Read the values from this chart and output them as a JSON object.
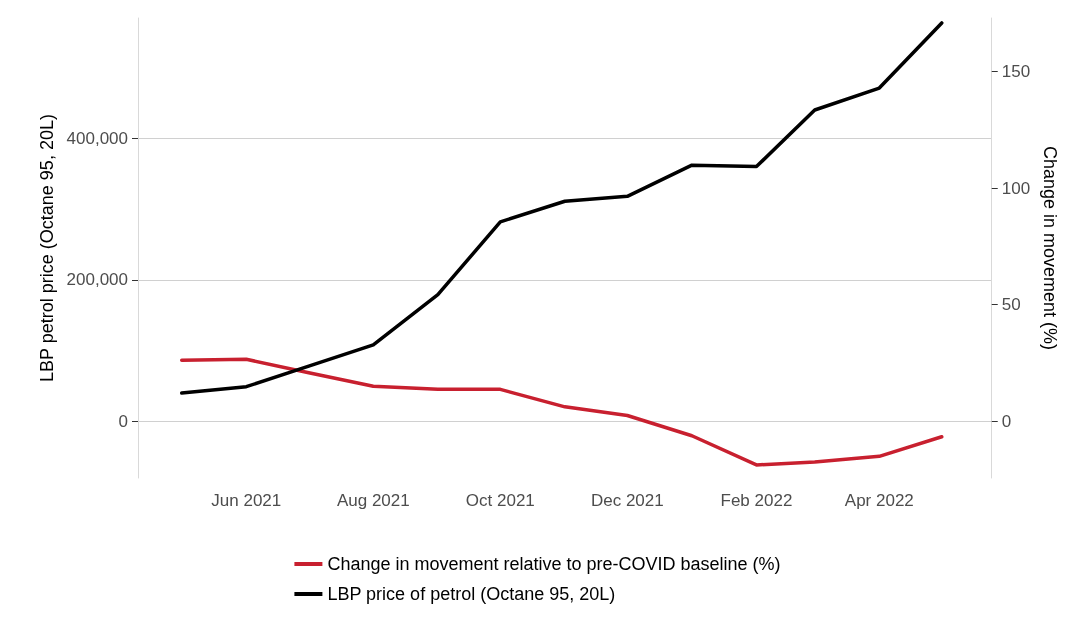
{
  "chart_data": {
    "type": "line",
    "ylabel": "LBP petrol price (Octane 95, 20L)",
    "y2label": "Change in movement (%)",
    "x": [
      "2021-05-01",
      "2021-06-01",
      "2021-07-01",
      "2021-08-01",
      "2021-09-01",
      "2021-10-01",
      "2021-11-01",
      "2021-12-01",
      "2022-01-01",
      "2022-02-01",
      "2022-03-01",
      "2022-04-01",
      "2022-05-01"
    ],
    "series": [
      {
        "name": "Change in movement relative to pre-COVID baseline (%)",
        "color": "#c8202f",
        "axis": "y2",
        "values": [
          26.2,
          26.6,
          20.8,
          15,
          13.7,
          13.7,
          6.2,
          2.5,
          -6.2,
          -18.7,
          -17.4,
          -15,
          -6.6
        ]
      },
      {
        "name": "LBP price of petrol (Octane 95, 20L)",
        "color": "#000000",
        "values": [
          40000,
          49000,
          78000,
          108000,
          179000,
          282000,
          311000,
          318000,
          362000,
          360000,
          440000,
          471000,
          563000
        ]
      }
    ],
    "xlim": [
      "2021-04-10",
      "2022-05-25"
    ],
    "xticks": [
      {
        "value": "2021-06-01",
        "label": "Jun 2021"
      },
      {
        "value": "2021-08-01",
        "label": "Aug 2021"
      },
      {
        "value": "2021-10-01",
        "label": "Oct 2021"
      },
      {
        "value": "2021-12-01",
        "label": "Dec 2021"
      },
      {
        "value": "2022-02-01",
        "label": "Feb 2022"
      },
      {
        "value": "2022-04-01",
        "label": "Apr 2022"
      }
    ],
    "ylim": [
      -80000,
      570000
    ],
    "yticks": [
      0,
      {
        "value": 200000,
        "label": "200,000"
      },
      {
        "value": 400000,
        "label": "400,000"
      }
    ],
    "y2lim": [
      -24.3,
      172.9
    ],
    "y2ticks": [
      0,
      50,
      100,
      150
    ],
    "grid": "y",
    "legend": "bottom",
    "marker": "none",
    "line_style": "solid"
  }
}
